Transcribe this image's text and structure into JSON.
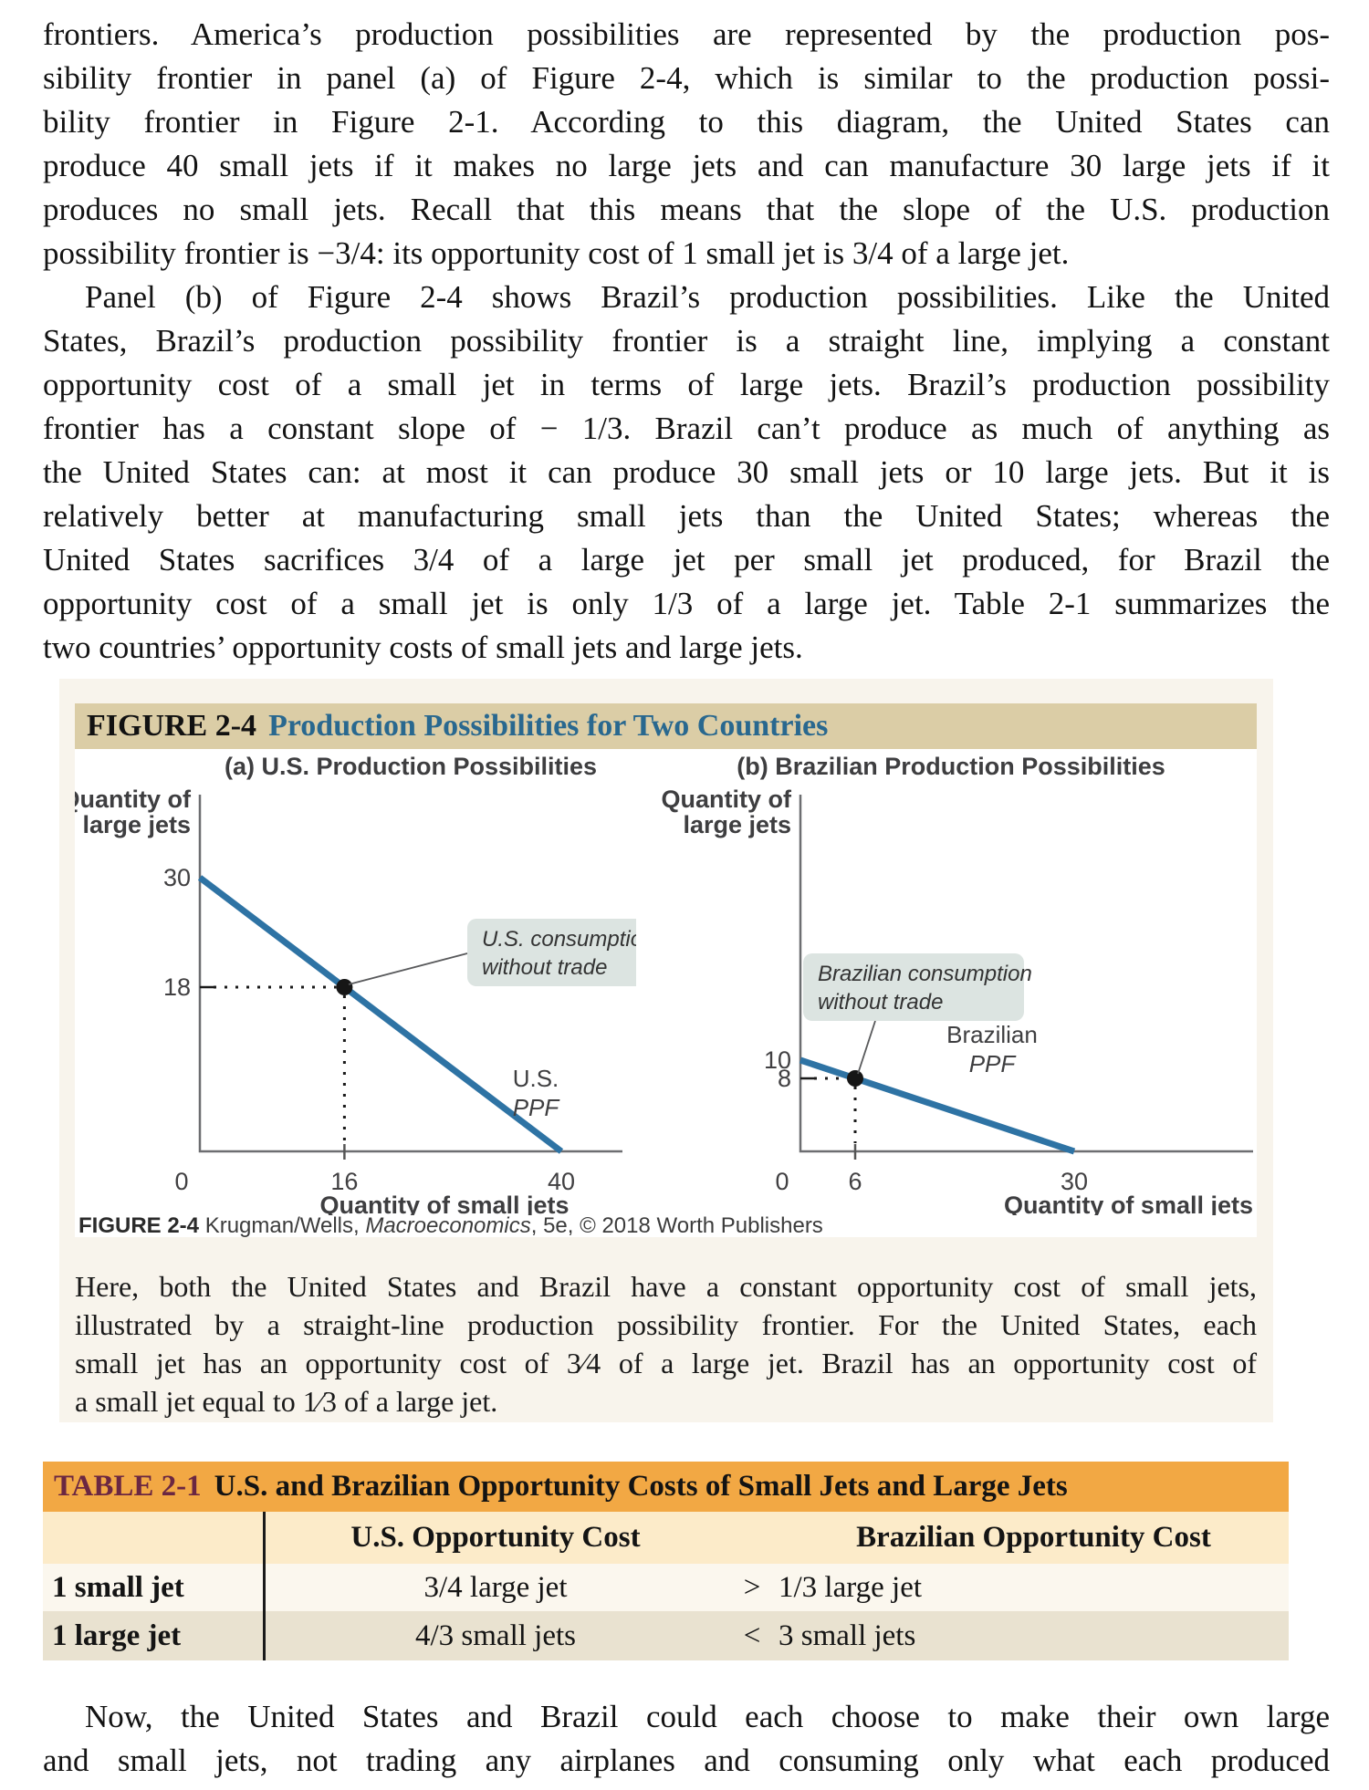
{
  "content": {
    "paragraph1": {
      "indent_first": false,
      "lines": [
        "frontiers. America’s production possibilities are represented by the production pos-",
        "sibility frontier in panel (a) of Figure 2-4, which is similar to the production possi-",
        "bility frontier in Figure 2-1. According to this diagram, the United States can",
        "produce 40 small jets if it makes no large jets and can manufacture 30 large jets if it",
        "produces no small jets. Recall that this means that the slope of the U.S. production",
        "possibility frontier is −3/4: its opportunity cost of 1 small jet is 3/4 of a large jet."
      ]
    },
    "paragraph2": {
      "indent_first": true,
      "lines": [
        "Panel (b) of Figure 2-4 shows Brazil’s production possibilities. Like the United",
        "States, Brazil’s production possibility frontier is a straight line, implying a constant",
        "opportunity cost of a small jet in terms of large jets. Brazil’s production possibility",
        "frontier has a constant slope of − 1/3. Brazil can’t produce as much of anything as",
        "the United States can: at most it can produce 30 small jets or 10 large jets. But it is",
        "relatively better at manufacturing small jets than the United States; whereas the",
        "United States sacrifices 3/4 of a large jet per small jet produced, for Brazil the",
        "opportunity cost of a small jet is only 1/3 of a large jet. Table 2-1 summarizes the",
        "two countries’ opportunity costs of small jets and large jets."
      ]
    },
    "paragraph3": {
      "indent_first": true,
      "lines": [
        "Now, the United States and Brazil could each choose to make their own large",
        "and small jets, not trading any airplanes and consuming only what each produced"
      ]
    }
  },
  "figure": {
    "label": "FIGURE 2-4",
    "title": "Production Possibilities for Two Countries",
    "credit": {
      "label": "FIGURE 2-4",
      "pre": " Krugman/Wells, ",
      "book": "Macroeconomics",
      "post": ", 5e, © 2018 Worth Publishers"
    },
    "caption": {
      "indent_first": false,
      "lines": [
        "Here, both the United States and Brazil have a constant opportunity cost of small jets,",
        "illustrated by a straight-line production possibility frontier. For the United States, each",
        "small jet has an opportunity cost of 3⁄4 of a large jet. Brazil has an opportunity cost of",
        "a small jet equal to 1⁄3 of a large jet."
      ]
    }
  },
  "chart_data": [
    {
      "type": "line",
      "panel_title": "(a) U.S. Production Possibilities",
      "xlabel": "Quantity of small jets",
      "ylabel_lines": [
        "Quantity of",
        "large jets"
      ],
      "series": [
        {
          "name": "U.S. PPF",
          "points": [
            [
              0,
              30
            ],
            [
              40,
              0
            ]
          ]
        }
      ],
      "ppf_label_lines": [
        "U.S.",
        "PPF"
      ],
      "consumption_point": [
        16,
        18
      ],
      "callout_lines": [
        "U.S. consumption",
        "without trade"
      ],
      "x_ticks": [
        0,
        16,
        40
      ],
      "y_ticks": [
        30,
        18
      ],
      "xlim": [
        0,
        47
      ],
      "ylim": [
        0,
        39
      ],
      "grid": false,
      "legend_position": "none"
    },
    {
      "type": "line",
      "panel_title": "(b) Brazilian Production Possibilities",
      "xlabel": "Quantity of small jets",
      "ylabel_lines": [
        "Quantity of",
        "large jets"
      ],
      "series": [
        {
          "name": "Brazilian PPF",
          "points": [
            [
              0,
              10
            ],
            [
              30,
              0
            ]
          ]
        }
      ],
      "ppf_label_lines": [
        "Brazilian",
        "PPF"
      ],
      "consumption_point": [
        6,
        8
      ],
      "callout_lines": [
        "Brazilian consumption",
        "without trade"
      ],
      "x_ticks": [
        0,
        6,
        30
      ],
      "y_ticks": [
        10,
        8
      ],
      "xlim": [
        0,
        50
      ],
      "ylim": [
        0,
        39
      ],
      "grid": false,
      "legend_position": "none"
    }
  ],
  "table": {
    "label": "TABLE 2-1",
    "title": "U.S. and Brazilian Opportunity Costs of Small Jets and Large Jets",
    "col_headers": [
      "U.S. Opportunity Cost",
      "Brazilian Opportunity Cost"
    ],
    "rows": [
      {
        "label": "1 small jet",
        "us": "3/4 large jet",
        "comparator": ">",
        "brazil": "1/3 large jet"
      },
      {
        "label": "1 large jet",
        "us": "4/3 small jets",
        "comparator": "<",
        "brazil": "3 small jets"
      }
    ]
  },
  "colors": {
    "figure_box_bg": "#f8f4ec",
    "figure_bar_bg": "#dbcda6",
    "figure_title_blue": "#29688f",
    "ppf_line_blue": "#2e73a4",
    "callout_bg": "#dce4e1",
    "axis_gray": "#6d6e71",
    "table_bar_orange": "#f2a844",
    "table_label_maroon": "#6b2742",
    "table_header_peach": "#fcebc9",
    "table_row_ivory": "#fbf7ee",
    "table_row_beige": "#e9e2d0"
  }
}
